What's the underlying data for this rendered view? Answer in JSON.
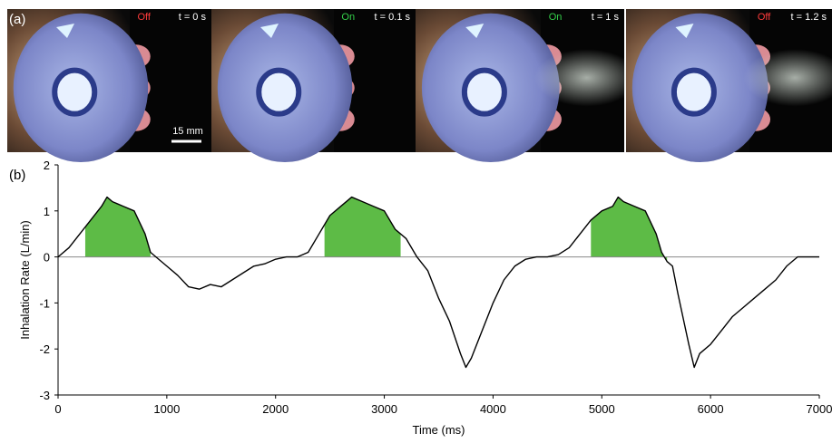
{
  "panel_a": {
    "label": "(a)",
    "scale_bar": "15 mm",
    "photos": [
      {
        "state": "Off",
        "state_color": "#ff3b3b",
        "time": "t = 0 s",
        "mist": 0
      },
      {
        "state": "On",
        "state_color": "#35d04a",
        "time": "t = 0.1 s",
        "mist": 0
      },
      {
        "state": "On",
        "state_color": "#35d04a",
        "time": "t = 1 s",
        "mist": 1
      },
      {
        "state": "Off",
        "state_color": "#ff3b3b",
        "time": "t = 1.2 s",
        "mist": 1
      }
    ]
  },
  "chart_data": {
    "type": "line",
    "panel_label": "(b)",
    "x_label": "Time (ms)",
    "y_label": "Inhalation Rate (L/min)",
    "color": "#000000",
    "fill_color": "#5dbb46",
    "x": [
      0,
      100,
      200,
      300,
      400,
      450,
      500,
      600,
      700,
      800,
      850,
      900,
      1000,
      1100,
      1200,
      1300,
      1400,
      1500,
      1600,
      1700,
      1800,
      1900,
      2000,
      2100,
      2200,
      2300,
      2400,
      2500,
      2600,
      2700,
      2800,
      2900,
      3000,
      3100,
      3200,
      3300,
      3400,
      3500,
      3600,
      3700,
      3750,
      3800,
      3900,
      4000,
      4100,
      4200,
      4300,
      4400,
      4500,
      4600,
      4700,
      4800,
      4900,
      5000,
      5100,
      5150,
      5200,
      5300,
      5400,
      5500,
      5550,
      5600,
      5650,
      5700,
      5800,
      5850,
      5900,
      6000,
      6100,
      6200,
      6300,
      6400,
      6500,
      6600,
      6700,
      6800,
      6900,
      7000
    ],
    "values": [
      0,
      0.2,
      0.5,
      0.8,
      1.1,
      1.3,
      1.2,
      1.1,
      1.0,
      0.5,
      0.1,
      0,
      -0.2,
      -0.4,
      -0.65,
      -0.7,
      -0.6,
      -0.65,
      -0.5,
      -0.35,
      -0.2,
      -0.15,
      -0.05,
      0,
      0,
      0.1,
      0.5,
      0.9,
      1.1,
      1.3,
      1.2,
      1.1,
      1.0,
      0.6,
      0.4,
      0,
      -0.3,
      -0.9,
      -1.4,
      -2.1,
      -2.4,
      -2.2,
      -1.6,
      -1.0,
      -0.5,
      -0.2,
      -0.05,
      0,
      0,
      0.05,
      0.2,
      0.5,
      0.8,
      1.0,
      1.1,
      1.3,
      1.2,
      1.1,
      1.0,
      0.5,
      0.1,
      -0.1,
      -0.2,
      -0.8,
      -1.9,
      -2.4,
      -2.1,
      -1.9,
      -1.6,
      -1.3,
      -1.1,
      -0.9,
      -0.7,
      -0.5,
      -0.2,
      0,
      0,
      0
    ],
    "shaded": [
      [
        250,
        850
      ],
      [
        2450,
        3150
      ],
      [
        4900,
        5600
      ]
    ],
    "xlim": [
      0,
      7000
    ],
    "ylim": [
      -3,
      2
    ],
    "xticks": [
      0,
      1000,
      2000,
      3000,
      4000,
      5000,
      6000,
      7000
    ],
    "yticks": [
      -3,
      -2,
      -1,
      0,
      1,
      2
    ]
  }
}
